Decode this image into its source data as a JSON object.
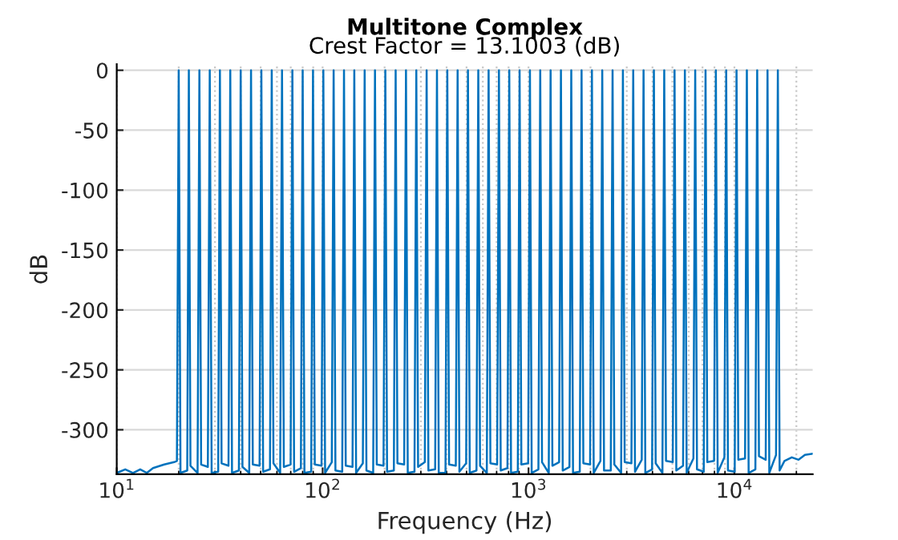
{
  "chart_data": {
    "type": "line",
    "title": "Multitone Complex",
    "subtitle": "Crest Factor = 13.1003 (dB)",
    "xlabel": "Frequency (Hz)",
    "ylabel": "dB",
    "log": "x",
    "grid": true,
    "legend": false,
    "xlim": [
      10,
      24000
    ],
    "xticks": [
      {
        "value": 10,
        "label": "10$^{1}$"
      },
      {
        "value": 100,
        "label": "10$^{2}$"
      },
      {
        "value": 1000,
        "label": "10$^{3}$"
      },
      {
        "value": 10000,
        "label": "10$^{4}$"
      }
    ],
    "ylim": [
      -337,
      5
    ],
    "yticks": [
      0,
      -50,
      -100,
      -150,
      -200,
      -250,
      -300
    ],
    "series": [
      {
        "color": "#0072bd",
        "line_style": "solid",
        "marker": "none",
        "x": [
          10,
          11,
          12,
          13,
          14,
          15,
          17,
          19,
          19.6,
          20,
          20.4,
          22,
          22.4,
          22.8,
          24.7,
          25.2,
          25.7,
          27.7,
          28.3,
          28.9,
          31.1,
          31.7,
          32.3,
          34.9,
          35.6,
          36.3,
          39.2,
          40,
          40.8,
          44,
          44.9,
          45.8,
          49.4,
          50.4,
          51.4,
          55.5,
          56.6,
          57.7,
          62.2,
          63.5,
          64.8,
          69.9,
          71.3,
          72.7,
          78.4,
          80,
          81.6,
          88,
          89.8,
          91.6,
          98.8,
          100.8,
          102.8,
          110.8,
          113.1,
          115.4,
          124.5,
          127,
          129.5,
          139.7,
          142.5,
          145.4,
          156.8,
          160,
          163.2,
          176,
          179.6,
          183.2,
          197.6,
          201.6,
          205.6,
          221.8,
          226.3,
          230.8,
          248.9,
          254,
          259.1,
          279.4,
          285.1,
          290.8,
          313.6,
          320,
          326.4,
          352,
          359.2,
          366.4,
          395.1,
          403.2,
          411.3,
          443.5,
          452.5,
          461.6,
          497.8,
          508,
          518.2,
          558.8,
          570.2,
          581.6,
          627.2,
          640,
          652.8,
          704,
          718.4,
          732.8,
          790.2,
          806.3,
          822.4,
          887,
          905.1,
          923.2,
          996,
          1016,
          1036,
          1117,
          1140,
          1163,
          1254,
          1280,
          1306,
          1408,
          1437,
          1466,
          1581,
          1613,
          1645,
          1774,
          1810,
          1846,
          1991,
          2032,
          2073,
          2235,
          2281,
          2327,
          2509,
          2560,
          2611,
          2817,
          2874,
          2931,
          3161,
          3225,
          3290,
          3548,
          3620,
          3692,
          3983,
          4064,
          4145,
          4471,
          4562,
          4653,
          5018,
          5120,
          5222,
          5632,
          5747,
          5862,
          6322,
          6451,
          6580,
          7096,
          7241,
          7386,
          7965,
          8128,
          8291,
          8941,
          9123,
          9305,
          10035,
          10240,
          10445,
          11264,
          11494,
          11724,
          12644,
          12902,
          13160,
          14192,
          14482,
          14772,
          15930,
          16255,
          16580,
          17500,
          19000,
          20500,
          22000,
          24000
        ],
        "values": [
          -336,
          -333,
          -336,
          -333,
          -336,
          -332,
          -329,
          -327,
          -326,
          0,
          -336,
          -334,
          0,
          -330,
          -336,
          0,
          -329,
          -331,
          0,
          -336,
          -335,
          0,
          -328,
          -330,
          0,
          -336,
          -334,
          0,
          -331,
          -336,
          0,
          -329,
          -330,
          0,
          -335,
          -333,
          0,
          -328,
          -336,
          0,
          -331,
          -329,
          0,
          -335,
          -332,
          0,
          -336,
          -335,
          0,
          -329,
          -330,
          0,
          -336,
          -327,
          0,
          -334,
          -335,
          0,
          -330,
          -331,
          0,
          -336,
          -328,
          0,
          -334,
          -336,
          0,
          -329,
          -330,
          0,
          -335,
          -334,
          0,
          -328,
          -329,
          0,
          -336,
          -335,
          0,
          -331,
          -327,
          0,
          -334,
          -333,
          0,
          -336,
          -336,
          0,
          -329,
          -330,
          0,
          -335,
          -328,
          0,
          -336,
          -334,
          0,
          -330,
          -336,
          0,
          -328,
          -329,
          0,
          -334,
          -332,
          0,
          -336,
          -335,
          0,
          -329,
          -328,
          0,
          -336,
          -333,
          0,
          -327,
          -336,
          0,
          -330,
          -327,
          0,
          -334,
          -331,
          0,
          -336,
          -335,
          0,
          -328,
          -329,
          0,
          -336,
          -326,
          0,
          -334,
          -334,
          0,
          -329,
          -336,
          0,
          -327,
          -328,
          0,
          -335,
          -325,
          0,
          -336,
          -333,
          0,
          -328,
          -336,
          0,
          -326,
          -327,
          0,
          -334,
          -330,
          0,
          -336,
          -324,
          0,
          -333,
          -335,
          0,
          -327,
          -326,
          0,
          -336,
          -323,
          0,
          -334,
          -335,
          0,
          -325,
          -324,
          0,
          -336,
          -333,
          0,
          -322,
          -325,
          0,
          -336,
          -321,
          0,
          -334,
          -326,
          -323,
          -325,
          -321,
          -320
        ]
      }
    ]
  }
}
